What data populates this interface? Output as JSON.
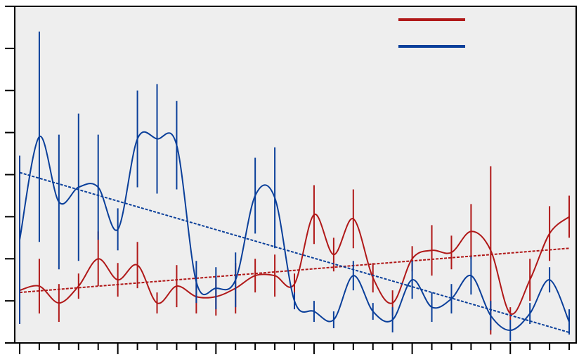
{
  "chart_data": {
    "type": "line",
    "title": "",
    "xlabel": "",
    "ylabel": "",
    "xlim": [
      0,
      28.6
    ],
    "ylim": [
      0,
      8
    ],
    "grid": false,
    "legend": "top-right",
    "series": [
      {
        "color": "#b01818",
        "x": [
          0,
          1,
          2,
          3,
          4,
          5,
          6,
          7,
          8,
          9,
          10,
          11,
          12,
          13,
          14,
          15,
          16,
          17,
          18,
          19,
          20,
          21,
          22,
          23,
          24,
          25,
          26,
          27,
          28
        ],
        "y": [
          1.25,
          1.35,
          0.95,
          1.35,
          2.0,
          1.5,
          1.85,
          0.95,
          1.35,
          1.1,
          1.1,
          1.3,
          1.6,
          1.6,
          1.4,
          3.05,
          2.1,
          2.95,
          1.55,
          0.95,
          2.0,
          2.2,
          2.15,
          2.65,
          2.2,
          0.7,
          1.5,
          2.6,
          3.0
        ],
        "err": [
          0.55,
          0.65,
          0.45,
          0.3,
          0.65,
          0.4,
          0.55,
          0.25,
          0.5,
          0.4,
          0.45,
          0.6,
          0.4,
          0.5,
          0.25,
          0.7,
          0.4,
          0.7,
          0.35,
          0.3,
          0.3,
          0.6,
          0.4,
          0.65,
          2.0,
          0.15,
          0.5,
          0.65,
          0.5
        ],
        "trend": [
          1.2,
          2.25
        ]
      },
      {
        "color": "#0a3f9a",
        "x": [
          0,
          1,
          2,
          3,
          4,
          5,
          6,
          7,
          8,
          9,
          10,
          11,
          12,
          13,
          14,
          15,
          16,
          17,
          18,
          19,
          20,
          21,
          22,
          23,
          24,
          25,
          26,
          27,
          28
        ],
        "y": [
          2.45,
          4.9,
          3.35,
          3.7,
          3.7,
          2.7,
          4.85,
          4.85,
          4.7,
          1.45,
          1.3,
          1.5,
          3.5,
          3.45,
          1.0,
          0.75,
          0.55,
          1.6,
          0.75,
          0.55,
          1.5,
          0.85,
          1.05,
          1.6,
          0.65,
          0.3,
          0.7,
          1.5,
          0.5
        ],
        "err": [
          2.0,
          2.5,
          1.6,
          1.75,
          1.25,
          0.5,
          1.15,
          1.3,
          1.05,
          0.5,
          0.5,
          0.65,
          0.9,
          1.2,
          0.2,
          0.25,
          0.2,
          0.35,
          0.2,
          0.3,
          0.45,
          0.35,
          0.35,
          0.45,
          0.35,
          0.25,
          0.25,
          0.3,
          0.3
        ],
        "trend": [
          4.05,
          0.25
        ]
      }
    ]
  }
}
